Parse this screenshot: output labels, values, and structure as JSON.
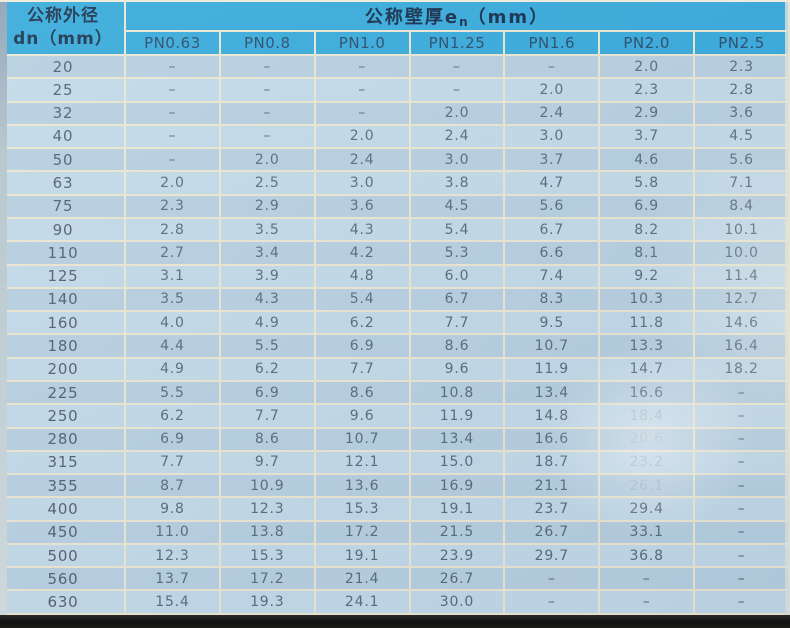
{
  "table": {
    "corner_header": {
      "line1": "公称外径",
      "line2": "dn（mm）"
    },
    "span_header": {
      "prefix": "公称壁厚e",
      "sub": "n",
      "suffix": "（mm）"
    },
    "pn_columns": [
      "PN0.63",
      "PN0.8",
      "PN1.0",
      "PN1.25",
      "PN1.6",
      "PN2.0",
      "PN2.5"
    ],
    "rows": [
      {
        "dn": "20",
        "values": [
          "–",
          "–",
          "–",
          "–",
          "–",
          "2.0",
          "2.3"
        ]
      },
      {
        "dn": "25",
        "values": [
          "–",
          "–",
          "–",
          "–",
          "2.0",
          "2.3",
          "2.8"
        ]
      },
      {
        "dn": "32",
        "values": [
          "–",
          "–",
          "–",
          "2.0",
          "2.4",
          "2.9",
          "3.6"
        ]
      },
      {
        "dn": "40",
        "values": [
          "–",
          "–",
          "2.0",
          "2.4",
          "3.0",
          "3.7",
          "4.5"
        ]
      },
      {
        "dn": "50",
        "values": [
          "–",
          "2.0",
          "2.4",
          "3.0",
          "3.7",
          "4.6",
          "5.6"
        ]
      },
      {
        "dn": "63",
        "values": [
          "2.0",
          "2.5",
          "3.0",
          "3.8",
          "4.7",
          "5.8",
          "7.1"
        ]
      },
      {
        "dn": "75",
        "values": [
          "2.3",
          "2.9",
          "3.6",
          "4.5",
          "5.6",
          "6.9",
          "8.4"
        ]
      },
      {
        "dn": "90",
        "values": [
          "2.8",
          "3.5",
          "4.3",
          "5.4",
          "6.7",
          "8.2",
          "10.1"
        ]
      },
      {
        "dn": "110",
        "values": [
          "2.7",
          "3.4",
          "4.2",
          "5.3",
          "6.6",
          "8.1",
          "10.0"
        ]
      },
      {
        "dn": "125",
        "values": [
          "3.1",
          "3.9",
          "4.8",
          "6.0",
          "7.4",
          "9.2",
          "11.4"
        ]
      },
      {
        "dn": "140",
        "values": [
          "3.5",
          "4.3",
          "5.4",
          "6.7",
          "8.3",
          "10.3",
          "12.7"
        ]
      },
      {
        "dn": "160",
        "values": [
          "4.0",
          "4.9",
          "6.2",
          "7.7",
          "9.5",
          "11.8",
          "14.6"
        ]
      },
      {
        "dn": "180",
        "values": [
          "4.4",
          "5.5",
          "6.9",
          "8.6",
          "10.7",
          "13.3",
          "16.4"
        ]
      },
      {
        "dn": "200",
        "values": [
          "4.9",
          "6.2",
          "7.7",
          "9.6",
          "11.9",
          "14.7",
          "18.2"
        ]
      },
      {
        "dn": "225",
        "values": [
          "5.5",
          "6.9",
          "8.6",
          "10.8",
          "13.4",
          "16.6",
          "–"
        ]
      },
      {
        "dn": "250",
        "values": [
          "6.2",
          "7.7",
          "9.6",
          "11.9",
          "14.8",
          "18.4",
          "–"
        ],
        "faded": [
          5
        ]
      },
      {
        "dn": "280",
        "values": [
          "6.9",
          "8.6",
          "10.7",
          "13.4",
          "16.6",
          "20.6",
          "–"
        ],
        "faded": [
          5
        ]
      },
      {
        "dn": "315",
        "values": [
          "7.7",
          "9.7",
          "12.1",
          "15.0",
          "18.7",
          "23.2",
          "–"
        ],
        "faded": [
          5
        ]
      },
      {
        "dn": "355",
        "values": [
          "8.7",
          "10.9",
          "13.6",
          "16.9",
          "21.1",
          "26.1",
          "–"
        ],
        "faded": [
          5
        ]
      },
      {
        "dn": "400",
        "values": [
          "9.8",
          "12.3",
          "15.3",
          "19.1",
          "23.7",
          "29.4",
          "–"
        ]
      },
      {
        "dn": "450",
        "values": [
          "11.0",
          "13.8",
          "17.2",
          "21.5",
          "26.7",
          "33.1",
          "–"
        ]
      },
      {
        "dn": "500",
        "values": [
          "12.3",
          "15.3",
          "19.1",
          "23.9",
          "29.7",
          "36.8",
          "–"
        ]
      },
      {
        "dn": "560",
        "values": [
          "13.7",
          "17.2",
          "21.4",
          "26.7",
          "–",
          "–",
          "–"
        ]
      },
      {
        "dn": "630",
        "values": [
          "15.4",
          "19.3",
          "24.1",
          "30.0",
          "–",
          "–",
          "–"
        ]
      }
    ]
  },
  "colors": {
    "header_cyan": "#33a9dc",
    "row_even": "#b5cfe1",
    "row_odd": "#c1d9e9",
    "grid_cream": "#ebe6d1",
    "data_text": "#57687c",
    "header_text": "#10294a",
    "faded_text": "#a9bac7",
    "bottom_bar": "#121212"
  }
}
